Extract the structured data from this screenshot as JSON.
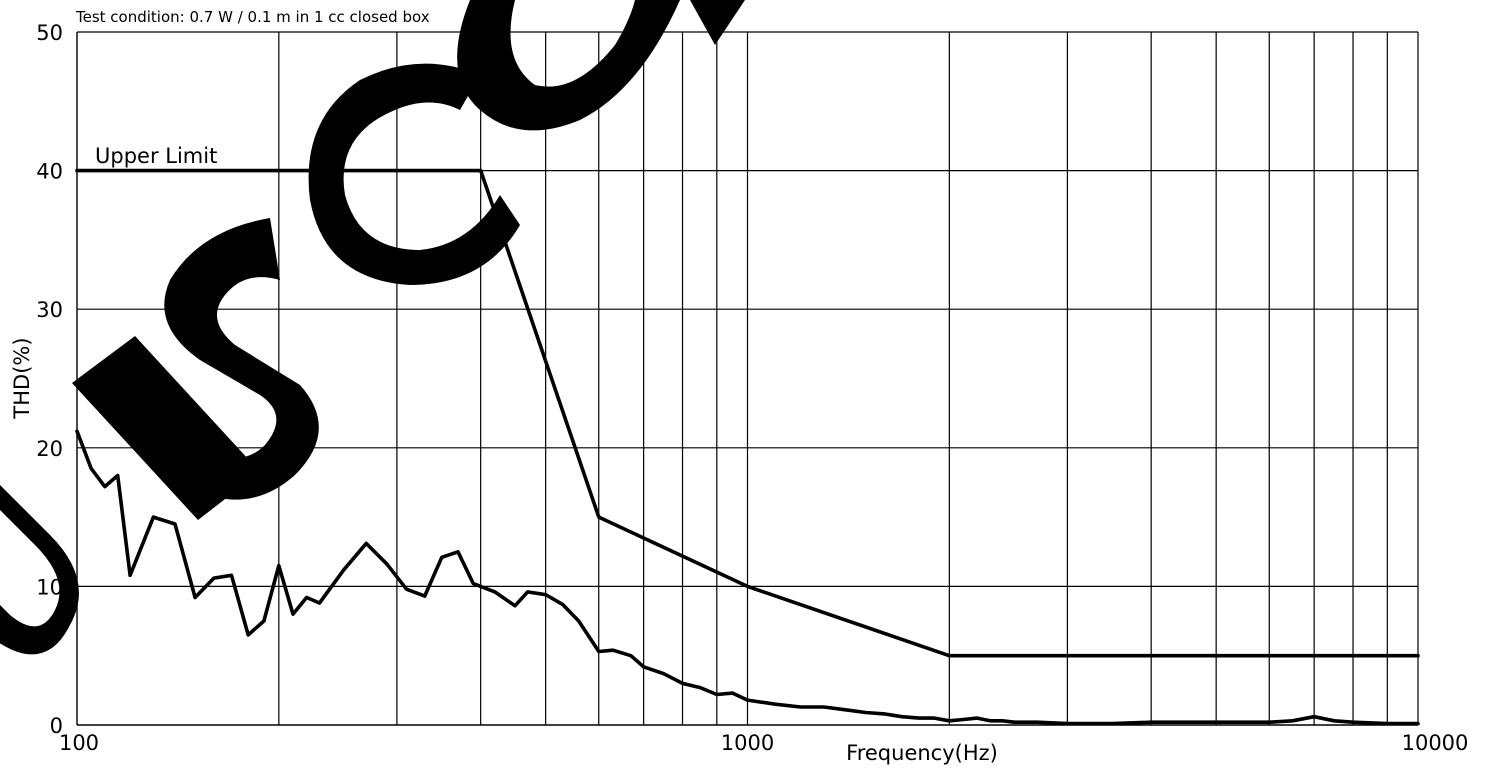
{
  "chart_data": {
    "type": "line",
    "title": "Test condition: 0.7 W / 0.1 m in 1 cc closed box",
    "xlabel": "Frequency(Hz)",
    "ylabel": "THD(%)",
    "x_scale": "log",
    "xlim": [
      100,
      10000
    ],
    "ylim": [
      0,
      50
    ],
    "x_tick_labels": [
      "100",
      "1000",
      "10000"
    ],
    "y_tick_labels": [
      "0",
      "10",
      "20",
      "30",
      "40",
      "50"
    ],
    "x_gridlines": [
      200,
      300,
      400,
      500,
      600,
      700,
      800,
      900,
      1000,
      2000,
      3000,
      4000,
      5000,
      6000,
      7000,
      8000,
      9000,
      10000
    ],
    "y_gridlines": [
      10,
      20,
      30,
      40,
      50
    ],
    "grid": true,
    "annotations": [
      {
        "text": "Upper Limit"
      }
    ],
    "series": [
      {
        "name": "Upper Limit",
        "x": [
          100,
          400,
          600,
          1000,
          2000,
          10000
        ],
        "y": [
          40,
          40,
          15,
          10,
          5,
          5
        ]
      },
      {
        "name": "",
        "x": [
          100,
          105,
          110,
          115,
          120,
          130,
          140,
          150,
          160,
          170,
          180,
          190,
          200,
          210,
          220,
          230,
          250,
          270,
          290,
          310,
          330,
          350,
          370,
          390,
          420,
          450,
          470,
          500,
          530,
          560,
          600,
          630,
          670,
          700,
          750,
          800,
          850,
          900,
          950,
          1000,
          1100,
          1200,
          1300,
          1400,
          1500,
          1600,
          1700,
          1800,
          1900,
          2000,
          2100,
          2200,
          2300,
          2400,
          2500,
          2700,
          3000,
          3500,
          4000,
          4500,
          5000,
          5500,
          6000,
          6500,
          7000,
          7500,
          8000,
          9000,
          10000
        ],
        "y": [
          21.2,
          18.5,
          17.2,
          18.0,
          10.8,
          15.0,
          14.5,
          9.2,
          10.6,
          10.8,
          6.5,
          7.5,
          11.5,
          8.0,
          9.2,
          8.8,
          11.2,
          13.1,
          11.6,
          9.8,
          9.3,
          12.1,
          12.5,
          10.2,
          9.6,
          8.6,
          9.6,
          9.4,
          8.7,
          7.5,
          5.3,
          5.4,
          5.0,
          4.2,
          3.7,
          3.0,
          2.7,
          2.2,
          2.3,
          1.8,
          1.5,
          1.3,
          1.3,
          1.1,
          0.9,
          0.8,
          0.6,
          0.5,
          0.5,
          0.3,
          0.4,
          0.5,
          0.3,
          0.3,
          0.2,
          0.2,
          0.1,
          0.1,
          0.2,
          0.2,
          0.2,
          0.2,
          0.2,
          0.3,
          0.6,
          0.3,
          0.2,
          0.1,
          0.1
        ]
      }
    ]
  },
  "watermark": {
    "text": "DISCO"
  }
}
